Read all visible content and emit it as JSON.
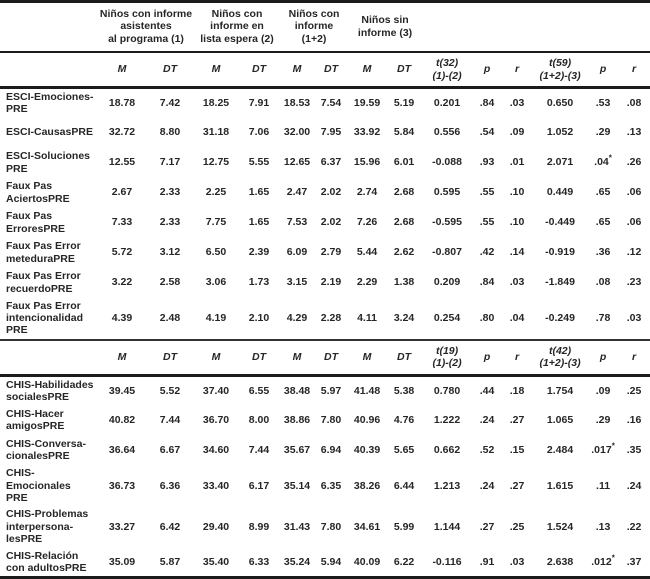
{
  "table": {
    "groups": [
      {
        "label": "Niños con informe\nasistentes\nal programa (1)"
      },
      {
        "label": "Niños con\ninforme en\nlista espera (2)"
      },
      {
        "label": "Niños con\ninforme\n(1+2)"
      },
      {
        "label": "Niños sin\ninforme (3)"
      }
    ],
    "sections": [
      {
        "stat_headers": [
          "M",
          "DT",
          "M",
          "DT",
          "M",
          "DT",
          "M",
          "DT",
          "t(32)\n(1)-(2)",
          "p",
          "r",
          "t(59)\n(1+2)-(3)",
          "p",
          "r"
        ],
        "rows": [
          {
            "label": "ESCI-Emociones-\nPRE",
            "values": [
              "18.78",
              "7.42",
              "18.25",
              "7.91",
              "18.53",
              "7.54",
              "19.59",
              "5.19",
              "0.201",
              ".84",
              ".03",
              "0.650",
              ".53",
              ".08"
            ]
          },
          {
            "label": "ESCI-CausasPRE",
            "values": [
              "32.72",
              "8.80",
              "31.18",
              "7.06",
              "32.00",
              "7.95",
              "33.92",
              "5.84",
              "0.556",
              ".54",
              ".09",
              "1.052",
              ".29",
              ".13"
            ]
          },
          {
            "label": "ESCI-Soluciones\nPRE",
            "values": [
              "12.55",
              "7.17",
              "12.75",
              "5.55",
              "12.65",
              "6.37",
              "15.96",
              "6.01",
              "-0.088",
              ".93",
              ".01",
              "2.071",
              ".04*",
              ".26"
            ]
          },
          {
            "label": "Faux Pas\nAciertosPRE",
            "values": [
              "2.67",
              "2.33",
              "2.25",
              "1.65",
              "2.47",
              "2.02",
              "2.74",
              "2.68",
              "0.595",
              ".55",
              ".10",
              "0.449",
              ".65",
              ".06"
            ]
          },
          {
            "label": "Faux Pas\nErroresPRE",
            "values": [
              "7.33",
              "2.33",
              "7.75",
              "1.65",
              "7.53",
              "2.02",
              "7.26",
              "2.68",
              "-0.595",
              ".55",
              ".10",
              "-0.449",
              ".65",
              ".06"
            ]
          },
          {
            "label": "Faux Pas Error\nmeteduraPRE",
            "values": [
              "5.72",
              "3.12",
              "6.50",
              "2.39",
              "6.09",
              "2.79",
              "5.44",
              "2.62",
              "-0.807",
              ".42",
              ".14",
              "-0.919",
              ".36",
              ".12"
            ]
          },
          {
            "label": "Faux Pas Error\nrecuerdoPRE",
            "values": [
              "3.22",
              "2.58",
              "3.06",
              "1.73",
              "3.15",
              "2.19",
              "2.29",
              "1.38",
              "0.209",
              ".84",
              ".03",
              "-1.849",
              ".08",
              ".23"
            ]
          },
          {
            "label": "Faux Pas Error\nintencionalidad\nPRE",
            "values": [
              "4.39",
              "2.48",
              "4.19",
              "2.10",
              "4.29",
              "2.28",
              "4.11",
              "3.24",
              "0.254",
              ".80",
              ".04",
              "-0.249",
              ".78",
              ".03"
            ]
          }
        ]
      },
      {
        "stat_headers": [
          "M",
          "DT",
          "M",
          "DT",
          "M",
          "DT",
          "M",
          "DT",
          "t(19)\n(1)-(2)",
          "p",
          "r",
          "t(42)\n(1+2)-(3)",
          "p",
          "r"
        ],
        "rows": [
          {
            "label": "CHIS-Habilidades\nsocialesPRE",
            "values": [
              "39.45",
              "5.52",
              "37.40",
              "6.55",
              "38.48",
              "5.97",
              "41.48",
              "5.38",
              "0.780",
              ".44",
              ".18",
              "1.754",
              ".09",
              ".25"
            ]
          },
          {
            "label": "CHIS-Hacer\namigosPRE",
            "values": [
              "40.82",
              "7.44",
              "36.70",
              "8.00",
              "38.86",
              "7.80",
              "40.96",
              "4.76",
              "1.222",
              ".24",
              ".27",
              "1.065",
              ".29",
              ".16"
            ]
          },
          {
            "label": "CHIS-Conversa-\ncionalesPRE",
            "values": [
              "36.64",
              "6.67",
              "34.60",
              "7.44",
              "35.67",
              "6.94",
              "40.39",
              "5.65",
              "0.662",
              ".52",
              ".15",
              "2.484",
              ".017*",
              ".35"
            ]
          },
          {
            "label": "CHIS-Emocionales\nPRE",
            "values": [
              "36.73",
              "6.36",
              "33.40",
              "6.17",
              "35.14",
              "6.35",
              "38.26",
              "6.44",
              "1.213",
              ".24",
              ".27",
              "1.615",
              ".11",
              ".24"
            ]
          },
          {
            "label": "CHIS-Problemas\ninterpersona-\nlesPRE",
            "values": [
              "33.27",
              "6.42",
              "29.40",
              "8.99",
              "31.43",
              "7.80",
              "34.61",
              "5.99",
              "1.144",
              ".27",
              ".25",
              "1.524",
              ".13",
              ".22"
            ]
          },
          {
            "label": "CHIS-Relación\ncon adultosPRE",
            "values": [
              "35.09",
              "5.87",
              "35.40",
              "6.33",
              "35.24",
              "5.94",
              "40.09",
              "6.22",
              "-0.116",
              ".91",
              ".03",
              "2.638",
              ".012*",
              ".37"
            ]
          }
        ]
      }
    ]
  }
}
